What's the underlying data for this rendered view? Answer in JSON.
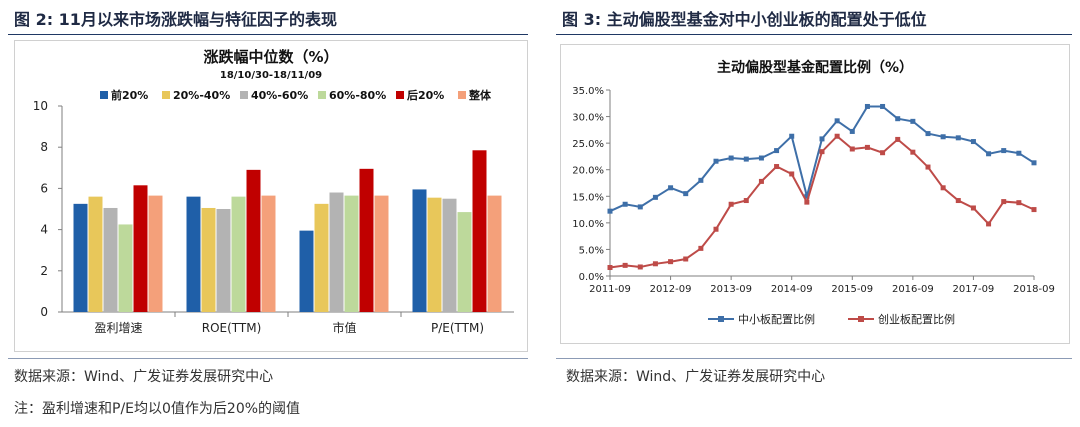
{
  "figures": {
    "left": {
      "title": "图 2:  11月以来市场涨跌幅与特征因子的表现",
      "source": "数据来源：Wind、广发证券发展研究中心",
      "note": "注：盈利增速和P/E均以0值作为后20%的阈值"
    },
    "right": {
      "title": "图 3:  主动偏股型基金对中小创业板的配置处于低位",
      "source": "数据来源：Wind、广发证券发展研究中心"
    }
  },
  "chart_data": [
    {
      "type": "bar",
      "title": "涨跌幅中位数（%）",
      "subtitle": "18/10/30-18/11/09",
      "categories": [
        "盈利增速",
        "ROE(TTM)",
        "市值",
        "P/E(TTM)"
      ],
      "ylim": [
        0,
        10
      ],
      "yticks": [
        0,
        2,
        4,
        6,
        8,
        10
      ],
      "grid": false,
      "legend_position": "top",
      "series": [
        {
          "name": "前20%",
          "color": "#1f5fa8",
          "values": [
            5.25,
            5.6,
            3.95,
            5.95
          ]
        },
        {
          "name": "20%-40%",
          "color": "#e8c75a",
          "values": [
            5.6,
            5.05,
            5.25,
            5.55
          ]
        },
        {
          "name": "40%-60%",
          "color": "#b3b3b3",
          "values": [
            5.05,
            5.0,
            5.8,
            5.5
          ]
        },
        {
          "name": "60%-80%",
          "color": "#bdd99b",
          "values": [
            4.25,
            5.6,
            5.65,
            4.85
          ]
        },
        {
          "name": "后20%",
          "color": "#c00000",
          "values": [
            6.15,
            6.9,
            6.95,
            7.85
          ]
        },
        {
          "name": "整体",
          "color": "#f4a07a",
          "values": [
            5.65,
            5.65,
            5.65,
            5.65
          ]
        }
      ]
    },
    {
      "type": "line",
      "title": "主动偏股型基金配置比例（%）",
      "ylim": [
        0,
        35
      ],
      "yticks": [
        "0.0%",
        "5.0%",
        "10.0%",
        "15.0%",
        "20.0%",
        "25.0%",
        "30.0%",
        "35.0%"
      ],
      "xticks": [
        "2011-09",
        "2012-09",
        "2013-09",
        "2014-09",
        "2015-09",
        "2016-09",
        "2017-09",
        "2018-09"
      ],
      "grid": false,
      "legend_position": "bottom",
      "series": [
        {
          "name": "中小板配置比例",
          "color": "#3e6fa8",
          "values": [
            12.2,
            13.5,
            13.0,
            14.8,
            16.6,
            15.5,
            18.0,
            21.6,
            22.2,
            22.0,
            22.2,
            23.6,
            26.3,
            15.0,
            25.8,
            29.2,
            27.2,
            31.9,
            31.9,
            29.6,
            29.1,
            26.8,
            26.2,
            26.0,
            25.3,
            23.0,
            23.6,
            23.1,
            21.3
          ]
        },
        {
          "name": "创业板配置比例",
          "color": "#be4b48",
          "values": [
            1.6,
            2.0,
            1.7,
            2.3,
            2.7,
            3.2,
            5.2,
            8.8,
            13.5,
            14.2,
            17.8,
            20.6,
            19.2,
            13.9,
            23.4,
            26.3,
            23.9,
            24.2,
            23.2,
            25.7,
            23.3,
            20.5,
            16.6,
            14.2,
            12.8,
            9.8,
            14.0,
            13.8,
            12.5
          ]
        }
      ]
    }
  ]
}
